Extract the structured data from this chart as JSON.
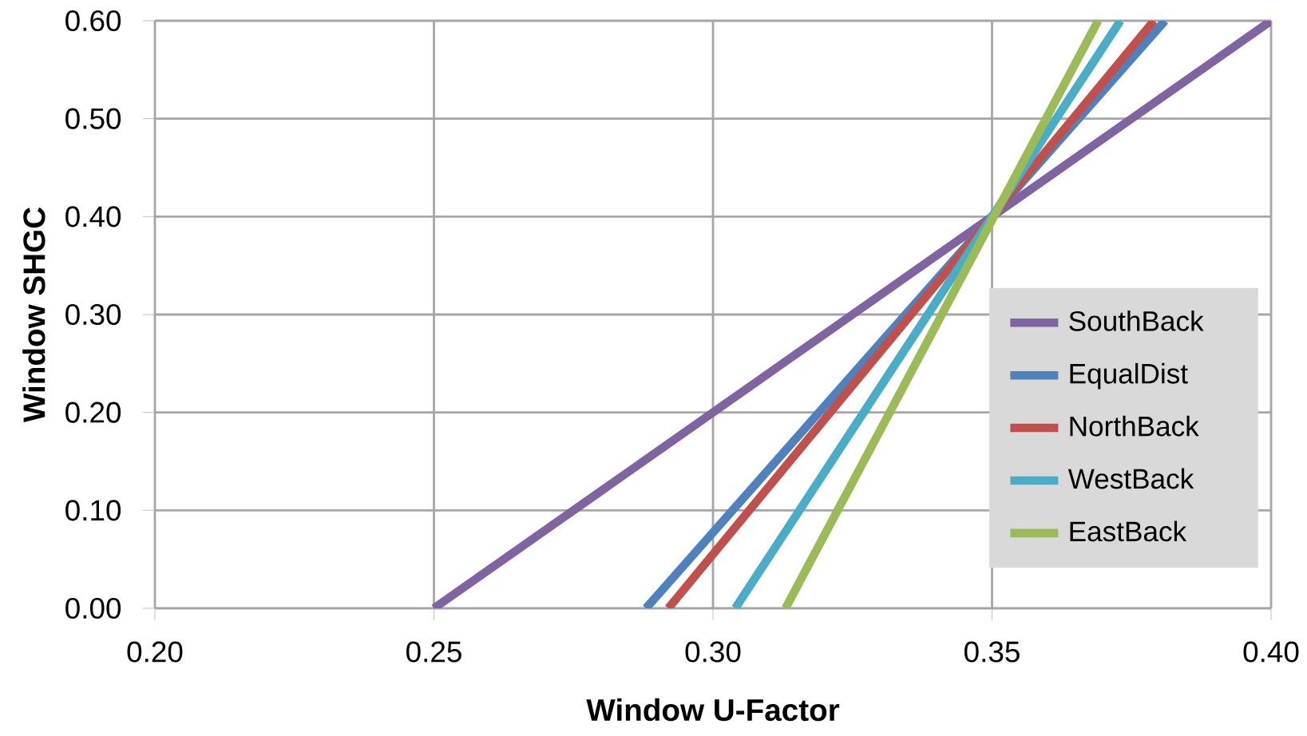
{
  "chart_data": {
    "type": "line",
    "xlabel": "Window U-Factor",
    "ylabel": "Window SHGC",
    "xlim": [
      0.2,
      0.4
    ],
    "ylim": [
      0,
      0.6
    ],
    "xticks": [
      {
        "value": 0.2,
        "label": "0.20"
      },
      {
        "value": 0.25,
        "label": "0.25"
      },
      {
        "value": 0.3,
        "label": "0.30"
      },
      {
        "value": 0.35,
        "label": "0.35"
      },
      {
        "value": 0.4,
        "label": "0.40"
      }
    ],
    "yticks": [
      {
        "value": 0,
        "label": "0.00"
      },
      {
        "value": 0.1,
        "label": "0.10"
      },
      {
        "value": 0.2,
        "label": "0.20"
      },
      {
        "value": 0.3,
        "label": "0.30"
      },
      {
        "value": 0.4,
        "label": "0.40"
      },
      {
        "value": 0.5,
        "label": "0.50"
      },
      {
        "value": 0.6,
        "label": "0.60"
      }
    ],
    "grid": true,
    "legend": "right",
    "marker": "none",
    "line_style": "solid",
    "series": [
      {
        "name": "SouthBack",
        "color": "#8064a2",
        "x": [
          0.25,
          0.4
        ],
        "values": [
          0,
          0.6
        ]
      },
      {
        "name": "EqualDist",
        "color": "#4f81bd",
        "x": [
          0.288,
          0.381
        ],
        "values": [
          0,
          0.6
        ]
      },
      {
        "name": "NorthBack",
        "color": "#c0504d",
        "x": [
          0.292,
          0.379
        ],
        "values": [
          0,
          0.6
        ]
      },
      {
        "name": "WestBack",
        "color": "#4bacc6",
        "x": [
          0.304,
          0.373
        ],
        "values": [
          0,
          0.6
        ]
      },
      {
        "name": "EastBack",
        "color": "#9bbb59",
        "x": [
          0.313,
          0.369
        ],
        "values": [
          0,
          0.6
        ]
      }
    ]
  }
}
